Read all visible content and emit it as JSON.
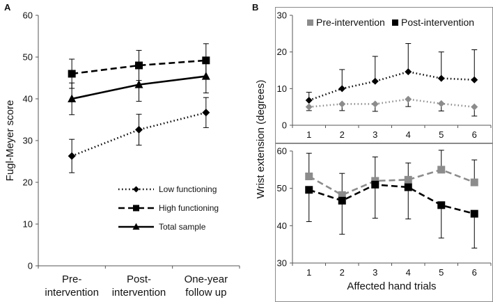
{
  "chart_data": [
    {
      "panel": "A",
      "type": "line",
      "xlabel": "",
      "ylabel": "Fugl-Meyer score",
      "categories": [
        [
          "Pre-",
          "intervention"
        ],
        [
          "Post-",
          "intervention"
        ],
        [
          "One-year",
          "follow up"
        ]
      ],
      "ylim": [
        0,
        60
      ],
      "yticks": [
        0,
        10,
        20,
        30,
        40,
        50,
        60
      ],
      "legend_position": "lower-right",
      "series": [
        {
          "name": "Low functioning",
          "style": "dotted",
          "marker": "diamond",
          "values": [
            26.3,
            32.6,
            36.7
          ],
          "err": [
            4.0,
            3.7,
            3.6
          ]
        },
        {
          "name": "High functioning",
          "style": "dashed",
          "marker": "square",
          "values": [
            46.0,
            48.0,
            49.2
          ],
          "err": [
            3.5,
            3.6,
            4.0
          ]
        },
        {
          "name": "Total sample",
          "style": "solid",
          "marker": "triangle",
          "values": [
            40.0,
            43.4,
            45.4
          ],
          "err": [
            3.8,
            4.0,
            4.0
          ]
        }
      ]
    },
    {
      "panel": "B",
      "type": "line",
      "ylabel": "Wrist extension (degrees)",
      "xlabel": "Affected hand trials",
      "categories": [
        "1",
        "2",
        "3",
        "4",
        "5",
        "6"
      ],
      "legend": [
        {
          "name": "Pre-intervention",
          "color": "#8c8c8c"
        },
        {
          "name": "Post-intervention",
          "color": "#000000"
        }
      ],
      "subplots": [
        {
          "id": "top",
          "ylim": [
            0,
            30
          ],
          "yticks": [
            0,
            10,
            20,
            30
          ],
          "series": [
            {
              "name": "Post-intervention",
              "color": "#000000",
              "style": "dotted",
              "marker": "diamond",
              "values": [
                6.8,
                10.0,
                12.0,
                14.6,
                12.8,
                12.4
              ],
              "err_up": [
                2.2,
                5.2,
                6.8,
                7.7,
                7.2,
                8.2
              ],
              "err_down": [
                0,
                0,
                0,
                0,
                0,
                0
              ]
            },
            {
              "name": "Pre-intervention",
              "color": "#8c8c8c",
              "style": "dotted",
              "marker": "diamond",
              "values": [
                5.0,
                5.8,
                5.8,
                7.1,
                5.9,
                5.0
              ],
              "err_up": [
                0,
                0,
                0,
                0,
                0,
                0
              ],
              "err_down": [
                1.0,
                1.8,
                2.0,
                2.0,
                2.0,
                2.5
              ]
            }
          ]
        },
        {
          "id": "bottom",
          "ylim": [
            30,
            60
          ],
          "yticks": [
            30,
            40,
            50,
            60
          ],
          "series": [
            {
              "name": "Pre-intervention",
              "color": "#8c8c8c",
              "style": "dashed",
              "marker": "square",
              "values": [
                53.2,
                48.2,
                52.0,
                52.3,
                55.0,
                51.6
              ],
              "err_up": [
                6.2,
                5.8,
                6.4,
                4.5,
                5.2,
                6.0
              ],
              "err_down": [
                0,
                0,
                0,
                0,
                0,
                0
              ]
            },
            {
              "name": "Post-intervention",
              "color": "#000000",
              "style": "dashed",
              "marker": "square",
              "values": [
                49.6,
                46.7,
                51.0,
                50.3,
                45.5,
                43.2
              ],
              "err_up": [
                0,
                0,
                0,
                0,
                0,
                0
              ],
              "err_down": [
                8.5,
                9.0,
                9.0,
                8.5,
                8.8,
                9.2
              ]
            }
          ]
        }
      ]
    }
  ]
}
